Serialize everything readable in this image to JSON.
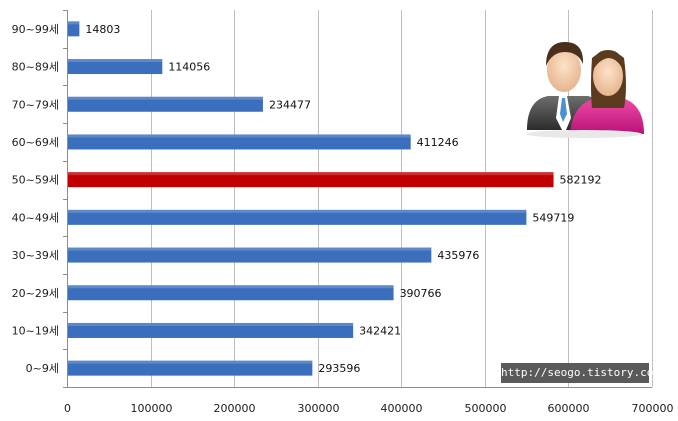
{
  "watermark": "http://seogo.tistory.com",
  "chart_data": {
    "type": "bar",
    "orientation": "horizontal",
    "title": "",
    "xlabel": "",
    "ylabel": "",
    "xlim": [
      0,
      700000
    ],
    "xticks": [
      "0",
      "100000",
      "200000",
      "300000",
      "400000",
      "500000",
      "600000",
      "700000"
    ],
    "grid": true,
    "categories": [
      "90~99세",
      "80~89세",
      "70~79세",
      "60~69세",
      "50~59세",
      "40~49세",
      "30~39세",
      "20~29세",
      "10~19세",
      "0~9세"
    ],
    "values": [
      14803,
      114056,
      234477,
      411246,
      582192,
      549719,
      435976,
      390766,
      342421,
      293596
    ],
    "data_labels": [
      "14803",
      "114056",
      "234477",
      "411246",
      "582192",
      "549719",
      "435976",
      "390766",
      "342421",
      "293596"
    ],
    "colors": {
      "bar": "#3b6fbd",
      "highlight": "#c00000",
      "grid": "#bfbfbf"
    },
    "highlight_category": "50~59세"
  },
  "icon": "man-and-woman-users-icon"
}
